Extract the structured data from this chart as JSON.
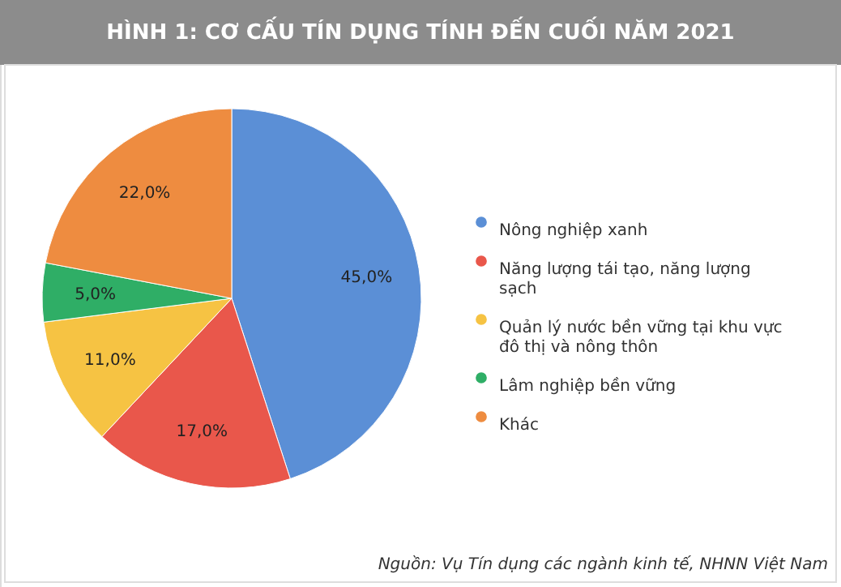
{
  "chart_data": {
    "type": "pie",
    "title": "HÌNH 1: CƠ CẤU TÍN DỤNG TÍNH ĐẾN CUỐI NĂM 2021",
    "categories": [
      "Nông nghiệp xanh",
      "Năng lượng tái tạo, năng lượng sạch",
      "Quản lý nước bền vững tại khu vực đô thị và nông thôn",
      "Lâm nghiệp bền vững",
      "Khác"
    ],
    "values": [
      45,
      17,
      11,
      5,
      22
    ],
    "colors": [
      "#5b8fd6",
      "#e9574b",
      "#f6c343",
      "#2fae66",
      "#ee8c40"
    ],
    "value_labels": [
      "45,0%",
      "17,0%",
      "11,0%",
      "5,0%",
      "22,0%"
    ],
    "legend": "right",
    "annotations": [
      "Nguồn: Vụ Tín dụng các ngành kinh tế, NHNN Việt Nam"
    ]
  }
}
